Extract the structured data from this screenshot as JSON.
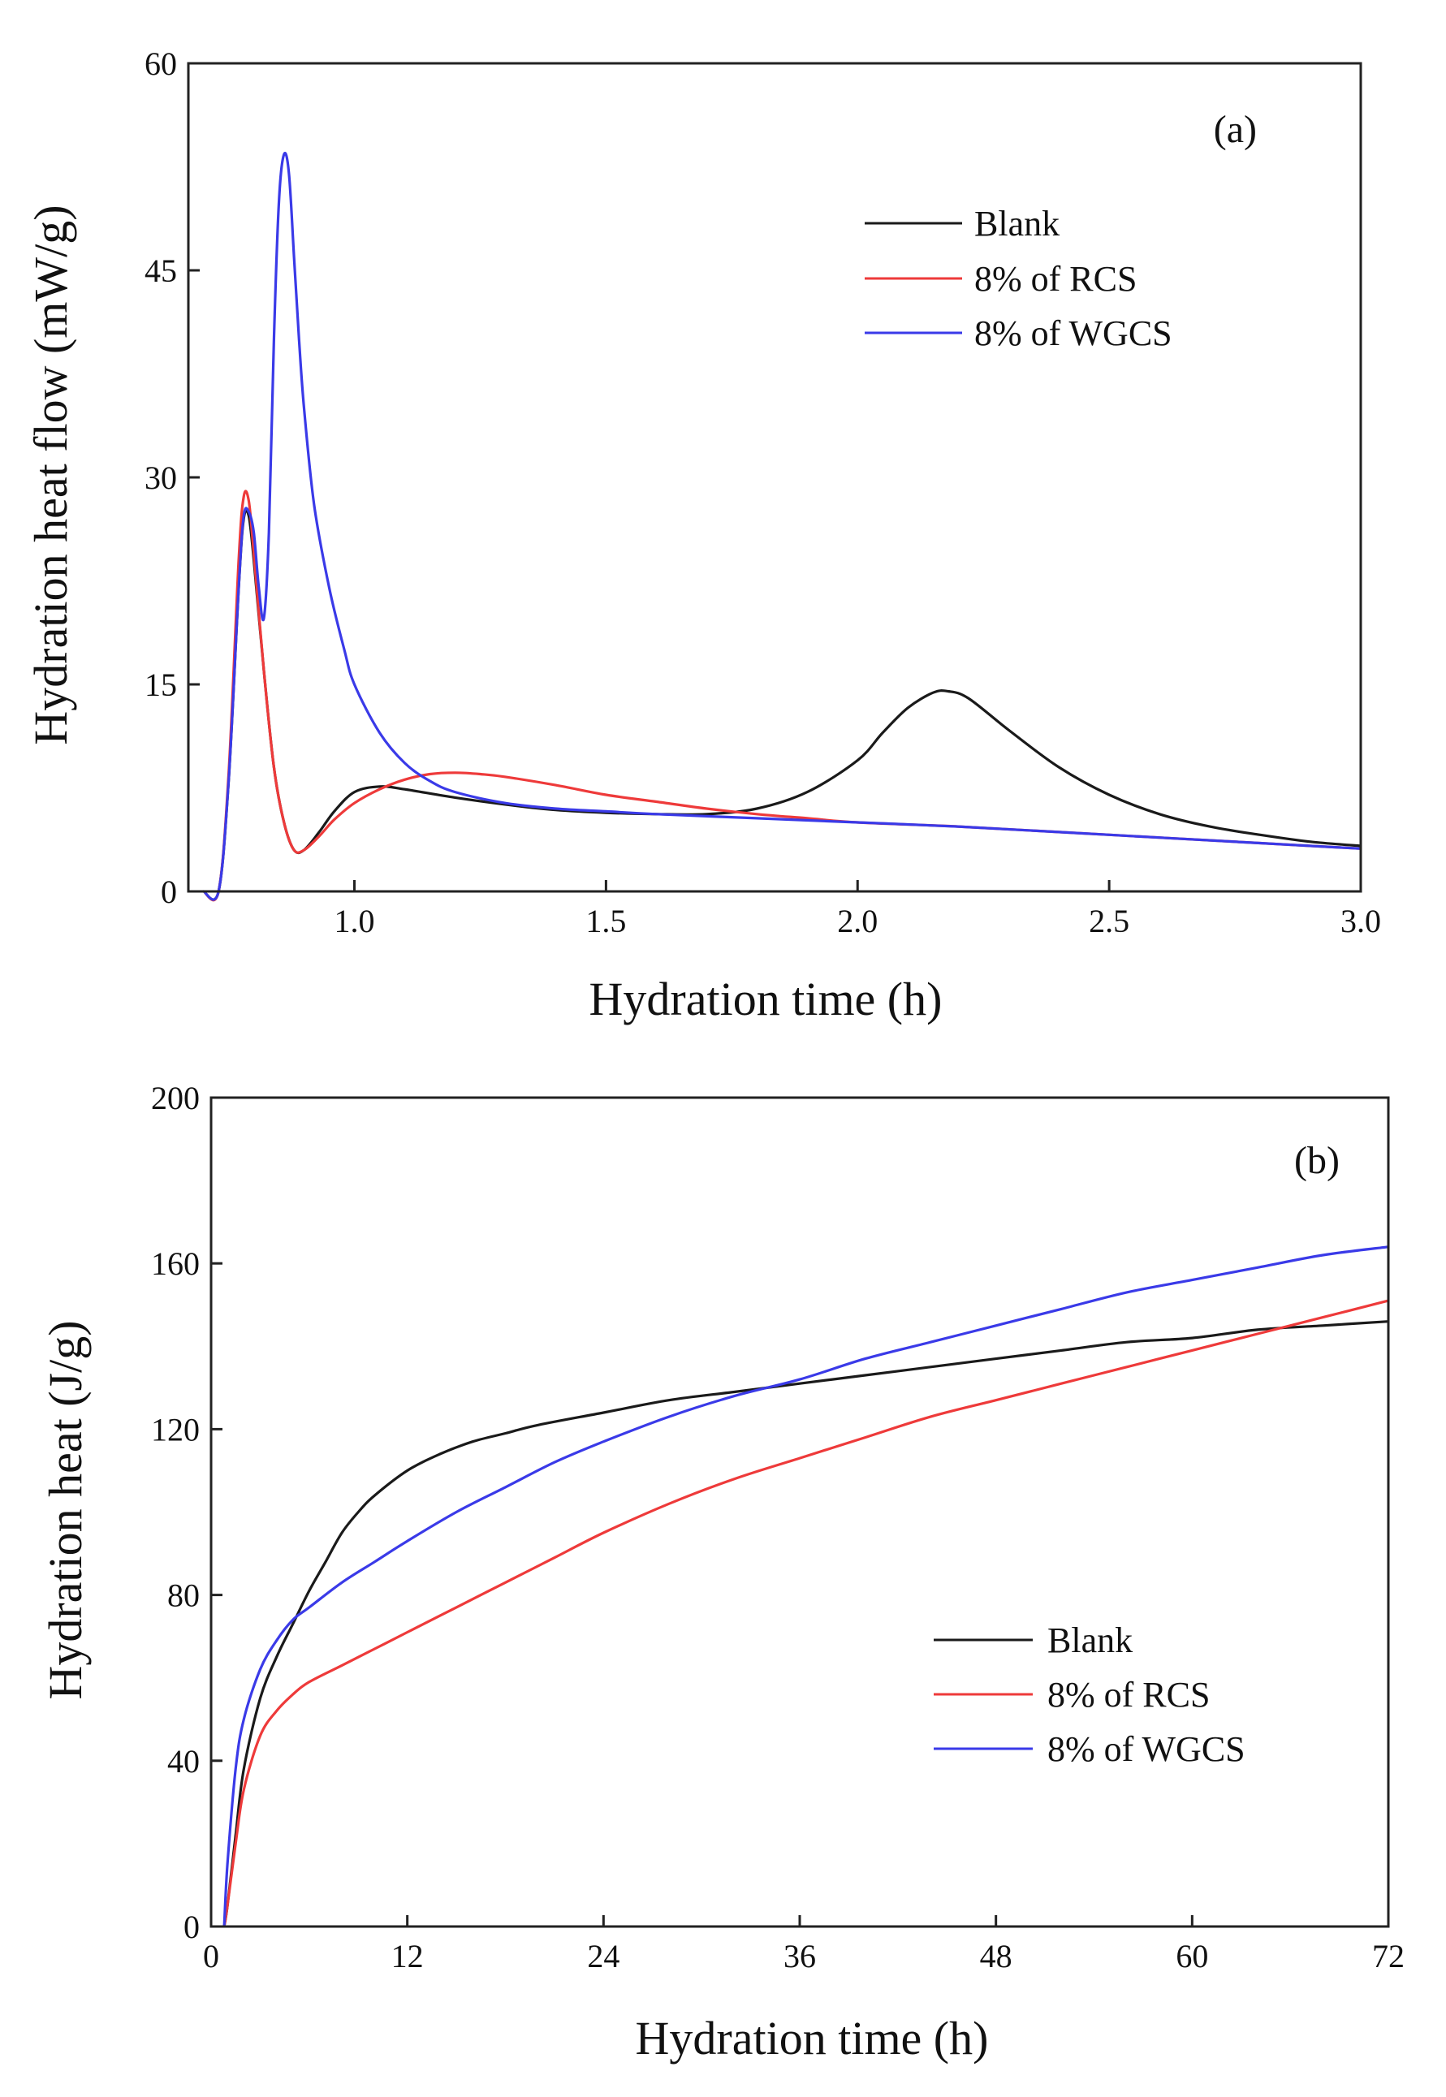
{
  "chart_data": [
    {
      "type": "line",
      "panel_label": "(a)",
      "xlabel": "Hydration time (h)",
      "ylabel": "Hydration heat flow (mW/g)",
      "xlim": [
        0.67,
        3.0
      ],
      "ylim": [
        0,
        60
      ],
      "xticks": [
        1.0,
        1.5,
        2.0,
        2.5,
        3.0
      ],
      "xtick_labels": [
        "1.0",
        "1.5",
        "2.0",
        "2.5",
        "3.0"
      ],
      "yticks": [
        0,
        15,
        30,
        45,
        60
      ],
      "ytick_labels": [
        "0",
        "15",
        "30",
        "45",
        "60"
      ],
      "legend_position": "upper-right",
      "series": [
        {
          "name": "Blank",
          "color": "#1a1a1a",
          "x": [
            0.7,
            0.73,
            0.75,
            0.77,
            0.78,
            0.79,
            0.8,
            0.82,
            0.84,
            0.86,
            0.88,
            0.9,
            0.93,
            0.96,
            1.0,
            1.05,
            1.1,
            1.2,
            1.3,
            1.4,
            1.5,
            1.6,
            1.7,
            1.8,
            1.9,
            2.0,
            2.05,
            2.1,
            2.15,
            2.18,
            2.22,
            2.3,
            2.4,
            2.5,
            2.6,
            2.7,
            2.8,
            2.9,
            3.0
          ],
          "y": [
            0.0,
            0.0,
            8.0,
            22.0,
            27.0,
            27.2,
            24.0,
            16.0,
            9.0,
            5.0,
            3.0,
            3.0,
            4.3,
            5.8,
            7.2,
            7.6,
            7.4,
            6.8,
            6.3,
            5.9,
            5.7,
            5.6,
            5.6,
            6.0,
            7.2,
            9.5,
            11.5,
            13.3,
            14.4,
            14.5,
            14.0,
            11.7,
            9.0,
            7.0,
            5.6,
            4.7,
            4.1,
            3.6,
            3.3
          ]
        },
        {
          "name": "8% of RCS",
          "color": "#ee3a3a",
          "x": [
            0.7,
            0.73,
            0.75,
            0.77,
            0.78,
            0.79,
            0.8,
            0.82,
            0.84,
            0.86,
            0.88,
            0.9,
            0.93,
            0.96,
            1.0,
            1.05,
            1.1,
            1.15,
            1.2,
            1.25,
            1.3,
            1.4,
            1.5,
            1.6,
            1.7,
            1.8,
            1.9,
            2.0,
            2.2,
            2.4,
            2.6,
            2.8,
            3.0
          ],
          "y": [
            0.0,
            0.0,
            8.5,
            24.0,
            28.6,
            28.3,
            24.5,
            16.0,
            9.0,
            5.0,
            3.0,
            3.0,
            4.0,
            5.2,
            6.4,
            7.4,
            8.1,
            8.5,
            8.6,
            8.5,
            8.3,
            7.7,
            7.0,
            6.5,
            6.0,
            5.6,
            5.3,
            5.0,
            4.7,
            4.3,
            3.9,
            3.5,
            3.1
          ]
        },
        {
          "name": "8% of WGCS",
          "color": "#3a3ae8",
          "x": [
            0.7,
            0.73,
            0.75,
            0.77,
            0.78,
            0.79,
            0.8,
            0.81,
            0.82,
            0.83,
            0.84,
            0.85,
            0.86,
            0.87,
            0.88,
            0.89,
            0.9,
            0.92,
            0.95,
            0.98,
            1.0,
            1.05,
            1.1,
            1.15,
            1.2,
            1.3,
            1.4,
            1.5,
            1.6,
            1.8,
            2.0,
            2.2,
            2.4,
            2.6,
            2.8,
            3.0
          ],
          "y": [
            0.0,
            0.0,
            8.0,
            22.0,
            27.2,
            27.5,
            26.0,
            22.0,
            19.8,
            26.0,
            40.0,
            50.0,
            53.4,
            52.0,
            46.0,
            40.0,
            35.0,
            28.0,
            22.0,
            17.5,
            15.0,
            11.5,
            9.3,
            8.0,
            7.2,
            6.4,
            6.0,
            5.8,
            5.6,
            5.3,
            5.0,
            4.7,
            4.3,
            3.9,
            3.5,
            3.1
          ]
        }
      ]
    },
    {
      "type": "line",
      "panel_label": "(b)",
      "xlabel": "Hydration time (h)",
      "ylabel": "Hydration heat  (J/g)",
      "xlim": [
        0,
        72
      ],
      "ylim": [
        0,
        200
      ],
      "xticks": [
        0,
        12,
        24,
        36,
        48,
        60,
        72
      ],
      "xtick_labels": [
        "0",
        "12",
        "24",
        "36",
        "48",
        "60",
        "72"
      ],
      "yticks": [
        0,
        40,
        80,
        120,
        160,
        200
      ],
      "ytick_labels": [
        "0",
        "40",
        "80",
        "120",
        "160",
        "200"
      ],
      "legend_position": "lower-right",
      "series": [
        {
          "name": "Blank",
          "color": "#1a1a1a",
          "x": [
            0.8,
            1.0,
            1.5,
            2.0,
            3.0,
            4.0,
            5.0,
            6.0,
            7.0,
            8.0,
            9.0,
            10.0,
            12.0,
            14.0,
            16.0,
            18.0,
            20.0,
            24.0,
            28.0,
            32.0,
            36.0,
            40.0,
            44.0,
            48.0,
            52.0,
            56.0,
            60.0,
            64.0,
            68.0,
            72.0
          ],
          "y": [
            0,
            5,
            22,
            38,
            55,
            65,
            73,
            81,
            88,
            95,
            100,
            104,
            110,
            114,
            117,
            119,
            121,
            124,
            127,
            129,
            131,
            133,
            135,
            137,
            139,
            141,
            142,
            144,
            145,
            146
          ]
        },
        {
          "name": "8% of RCS",
          "color": "#ee3a3a",
          "x": [
            0.8,
            1.0,
            1.5,
            2.0,
            3.0,
            4.0,
            5.0,
            6.0,
            8.0,
            10.0,
            12.0,
            15.0,
            18.0,
            21.0,
            24.0,
            28.0,
            32.0,
            36.0,
            40.0,
            44.0,
            48.0,
            52.0,
            56.0,
            60.0,
            64.0,
            68.0,
            72.0
          ],
          "y": [
            0,
            5,
            20,
            33,
            46,
            52,
            56,
            59,
            63,
            67,
            71,
            77,
            83,
            89,
            95,
            102,
            108,
            113,
            118,
            123,
            127,
            131,
            135,
            139,
            143,
            147,
            151
          ]
        },
        {
          "name": "8% of WGCS",
          "color": "#3a3ae8",
          "x": [
            0.8,
            1.0,
            1.5,
            2.0,
            3.0,
            4.0,
            5.0,
            6.0,
            8.0,
            10.0,
            12.0,
            15.0,
            18.0,
            21.0,
            24.0,
            28.0,
            32.0,
            36.0,
            40.0,
            44.0,
            48.0,
            52.0,
            56.0,
            60.0,
            64.0,
            68.0,
            72.0
          ],
          "y": [
            0,
            15,
            38,
            50,
            62,
            69,
            74,
            77,
            83,
            88,
            93,
            100,
            106,
            112,
            117,
            123,
            128,
            132,
            137,
            141,
            145,
            149,
            153,
            156,
            159,
            162,
            164
          ]
        }
      ]
    }
  ]
}
